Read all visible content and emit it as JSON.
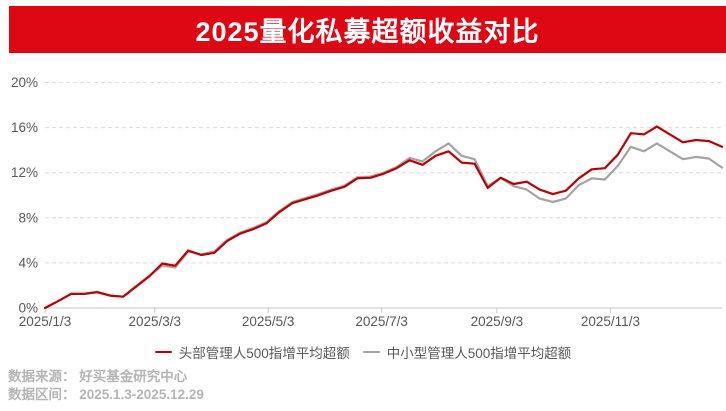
{
  "header": {
    "title": "2025量化私募超额收益对比"
  },
  "colors": {
    "banner_bg": "#de0714",
    "banner_text": "#ffffff",
    "axis_text": "#595959",
    "legend_text": "#595959",
    "grid_line": "#dcdcdc",
    "axis_line": "#c6c6c6",
    "footer_text": "#b5b5b5",
    "series_head": "#c00000",
    "series_small_mid": "#a3a3a3"
  },
  "chart_data": {
    "type": "line",
    "title": "2025量化私募超额收益对比",
    "unit": "%",
    "sampling": "weekly (dates estimated between labeled ticks)",
    "legend_position": "bottom",
    "grid": "horizontal dashed only",
    "x": [
      "2025/1/3",
      "2025/1/10",
      "2025/1/17",
      "2025/1/24",
      "2025/1/31",
      "2025/2/7",
      "2025/2/14",
      "2025/2/21",
      "2025/2/28",
      "2025/3/7",
      "2025/3/14",
      "2025/3/21",
      "2025/3/28",
      "2025/4/4",
      "2025/4/11",
      "2025/4/18",
      "2025/4/25",
      "2025/5/2",
      "2025/5/9",
      "2025/5/16",
      "2025/5/23",
      "2025/5/30",
      "2025/6/6",
      "2025/6/13",
      "2025/6/20",
      "2025/6/27",
      "2025/7/4",
      "2025/7/11",
      "2025/7/18",
      "2025/7/25",
      "2025/8/1",
      "2025/8/8",
      "2025/8/15",
      "2025/8/22",
      "2025/8/29",
      "2025/9/5",
      "2025/9/12",
      "2025/9/19",
      "2025/9/26",
      "2025/10/3",
      "2025/10/10",
      "2025/10/17",
      "2025/10/24",
      "2025/10/31",
      "2025/11/7",
      "2025/11/14",
      "2025/11/21",
      "2025/11/28",
      "2025/12/5",
      "2025/12/12",
      "2025/12/19",
      "2025/12/26",
      "2025/12/29"
    ],
    "series": [
      {
        "name": "头部管理人500指增平均超额",
        "key": "head-managers-500-excess",
        "color": "#c00000",
        "values": [
          0.0,
          0.6,
          1.25,
          1.25,
          1.4,
          1.1,
          1.0,
          1.9,
          2.8,
          3.95,
          3.75,
          5.1,
          4.7,
          4.9,
          5.95,
          6.6,
          7.0,
          7.5,
          8.5,
          9.3,
          9.65,
          10.0,
          10.4,
          10.75,
          11.5,
          11.55,
          11.9,
          12.4,
          13.1,
          12.7,
          13.5,
          13.9,
          12.9,
          12.8,
          10.65,
          11.55,
          11.0,
          11.2,
          10.5,
          10.1,
          10.4,
          11.5,
          12.3,
          12.4,
          13.6,
          15.5,
          15.4,
          16.1,
          15.4,
          14.7,
          14.9,
          14.8,
          14.3
        ]
      },
      {
        "name": "中小型管理人500指增平均超额",
        "key": "small-mid-managers-500-excess",
        "color": "#a3a3a3",
        "values": [
          0.0,
          0.6,
          1.25,
          1.25,
          1.45,
          1.1,
          1.0,
          1.95,
          2.85,
          3.75,
          3.6,
          5.0,
          4.75,
          5.0,
          6.05,
          6.7,
          7.1,
          7.6,
          8.6,
          9.4,
          9.75,
          10.1,
          10.5,
          10.85,
          11.6,
          11.65,
          12.0,
          12.5,
          13.3,
          13.0,
          13.9,
          14.6,
          13.5,
          13.2,
          10.8,
          11.55,
          10.8,
          10.5,
          9.7,
          9.4,
          9.7,
          10.9,
          11.5,
          11.4,
          12.6,
          14.3,
          13.9,
          14.6,
          13.9,
          13.2,
          13.4,
          13.25,
          12.45
        ]
      }
    ],
    "y_axis": {
      "range": [
        0,
        20
      ],
      "ticks": [
        0,
        4,
        8,
        12,
        16,
        20
      ],
      "labels": [
        "0%",
        "4%",
        "8%",
        "12%",
        "16%",
        "20%"
      ]
    },
    "x_axis": {
      "tick_labels": [
        "2025/1/3",
        "2025/3/3",
        "2025/5/3",
        "2025/7/3",
        "2025/9/3",
        "2025/11/3"
      ],
      "tick_positions": [
        0,
        8.43,
        17.14,
        25.86,
        34.71,
        43.43
      ]
    }
  },
  "footer": {
    "source": "数据来源： 好买基金研究中心",
    "range": "数据区间： 2025.1.3-2025.12.29"
  }
}
